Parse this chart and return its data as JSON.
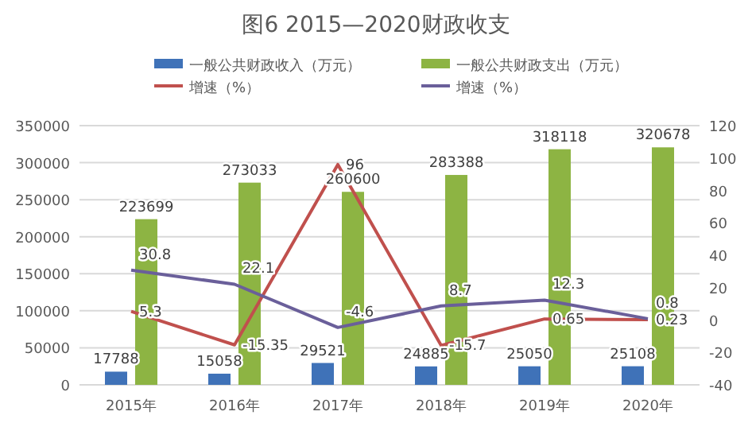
{
  "chart_data": {
    "type": "bar",
    "title": "图6  2015—2020财政收支",
    "categories": [
      "2015年",
      "2016年",
      "2017年",
      "2018年",
      "2019年",
      "2020年"
    ],
    "series": [
      {
        "name": "一般公共财政收入（万元）",
        "color": "#3f72b8",
        "values": [
          17788,
          15058,
          29521,
          24885,
          25050,
          25108
        ]
      },
      {
        "name": "一般公共财政支出（万元）",
        "color": "#8db443",
        "values": [
          223699,
          273033,
          260600,
          283388,
          318118,
          320678
        ]
      },
      {
        "name": "增速（%）",
        "type": "line",
        "axis": "y2",
        "color": "#c0504d",
        "values": [
          5.3,
          -15.35,
          96,
          -15.7,
          0.65,
          0.23
        ]
      },
      {
        "name": "增速（%）",
        "type": "line",
        "axis": "y2",
        "color": "#6a5f9a",
        "values": [
          30.8,
          22.1,
          -4.6,
          8.7,
          12.3,
          0.8
        ]
      }
    ],
    "ylim": [
      0,
      350000
    ],
    "yticks": [
      0,
      50000,
      100000,
      150000,
      200000,
      250000,
      300000,
      350000
    ],
    "y2lim": [
      -40,
      120
    ],
    "y2ticks": [
      -40,
      -20,
      0,
      20,
      40,
      60,
      80,
      100,
      120
    ],
    "grid": "y",
    "legend": "top",
    "data_labels": true,
    "marker": "none",
    "line_style": "solid"
  }
}
